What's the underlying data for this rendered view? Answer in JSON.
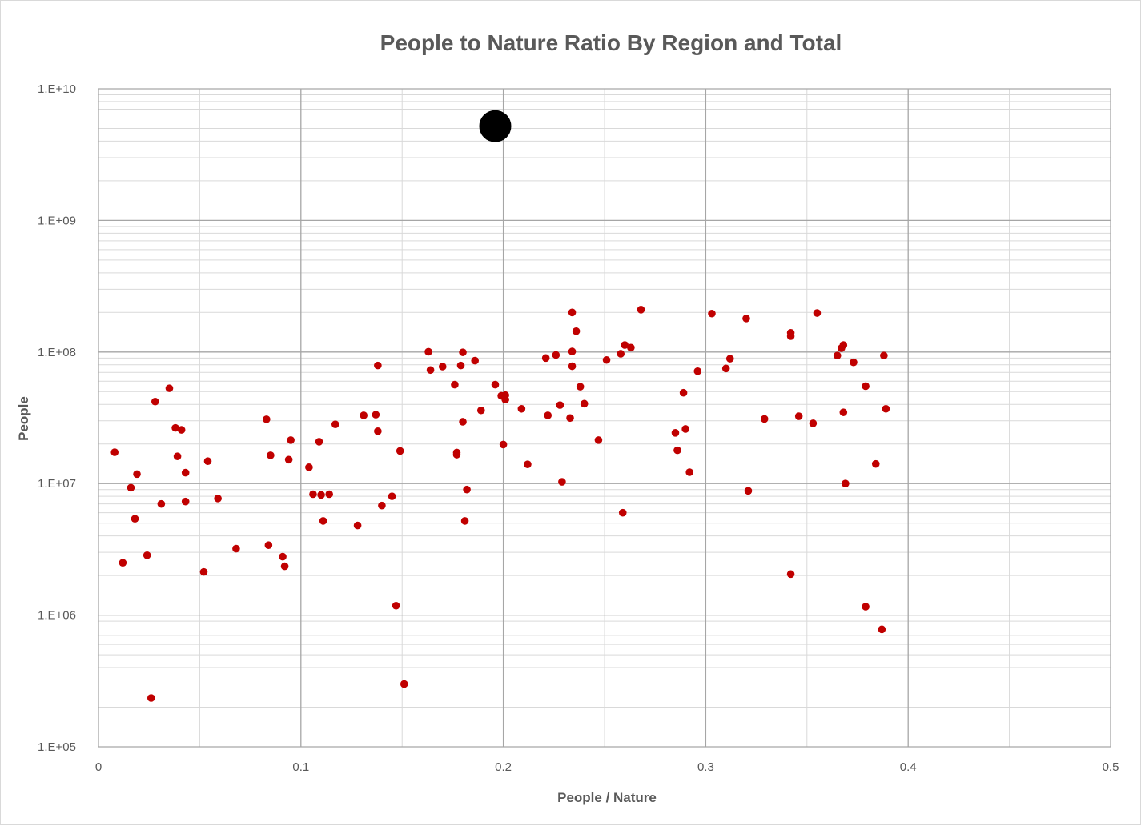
{
  "chart_data": {
    "type": "scatter",
    "title": "People to Nature Ratio By Region and Total",
    "xlabel": "People / Nature",
    "ylabel": "People",
    "xlim": [
      0,
      0.5
    ],
    "ylim": [
      100000,
      10000000000
    ],
    "yscale": "log",
    "grid": true,
    "legend": "none",
    "x_ticks": [
      0,
      0.05,
      0.1,
      0.15,
      0.2,
      0.25,
      0.3,
      0.35,
      0.4,
      0.45,
      0.5
    ],
    "x_tick_labels": [
      "0",
      "",
      "0.1",
      "",
      "0.2",
      "",
      "0.3",
      "",
      "0.4",
      "",
      "0.5"
    ],
    "y_tick_values": [
      100000,
      1000000,
      10000000,
      100000000,
      1000000000,
      10000000000
    ],
    "y_tick_labels": [
      "1.E+05",
      "1.E+06",
      "1.E+07",
      "1.E+08",
      "1.E+09",
      "1.E+10"
    ],
    "colors": {
      "regions": "#c00000",
      "total": "#000000",
      "grid": "#d9d9d9",
      "text": "#595959"
    },
    "series": [
      {
        "kind": "regions",
        "points": [
          {
            "x": 0.008,
            "y": 17300000
          },
          {
            "x": 0.012,
            "y": 2500000
          },
          {
            "x": 0.016,
            "y": 9300000
          },
          {
            "x": 0.018,
            "y": 5400000
          },
          {
            "x": 0.019,
            "y": 11800000
          },
          {
            "x": 0.024,
            "y": 2850000
          },
          {
            "x": 0.026,
            "y": 235000
          },
          {
            "x": 0.028,
            "y": 42000000
          },
          {
            "x": 0.031,
            "y": 7000000
          },
          {
            "x": 0.035,
            "y": 53000000
          },
          {
            "x": 0.038,
            "y": 26500000
          },
          {
            "x": 0.039,
            "y": 16100000
          },
          {
            "x": 0.041,
            "y": 25600000
          },
          {
            "x": 0.043,
            "y": 7300000
          },
          {
            "x": 0.043,
            "y": 12100000
          },
          {
            "x": 0.052,
            "y": 2130000
          },
          {
            "x": 0.054,
            "y": 14800000
          },
          {
            "x": 0.059,
            "y": 7700000
          },
          {
            "x": 0.068,
            "y": 3200000
          },
          {
            "x": 0.083,
            "y": 30800000
          },
          {
            "x": 0.084,
            "y": 3400000
          },
          {
            "x": 0.085,
            "y": 16400000
          },
          {
            "x": 0.091,
            "y": 2780000
          },
          {
            "x": 0.092,
            "y": 2350000
          },
          {
            "x": 0.094,
            "y": 15200000
          },
          {
            "x": 0.095,
            "y": 21400000
          },
          {
            "x": 0.104,
            "y": 13300000
          },
          {
            "x": 0.106,
            "y": 8300000
          },
          {
            "x": 0.109,
            "y": 20800000
          },
          {
            "x": 0.11,
            "y": 8200000
          },
          {
            "x": 0.111,
            "y": 5200000
          },
          {
            "x": 0.114,
            "y": 8300000
          },
          {
            "x": 0.117,
            "y": 28200000
          },
          {
            "x": 0.128,
            "y": 4800000
          },
          {
            "x": 0.131,
            "y": 33000000
          },
          {
            "x": 0.137,
            "y": 33400000
          },
          {
            "x": 0.138,
            "y": 25000000
          },
          {
            "x": 0.138,
            "y": 79000000
          },
          {
            "x": 0.14,
            "y": 6800000
          },
          {
            "x": 0.145,
            "y": 8000000
          },
          {
            "x": 0.147,
            "y": 1180000
          },
          {
            "x": 0.149,
            "y": 17700000
          },
          {
            "x": 0.151,
            "y": 300000
          },
          {
            "x": 0.163,
            "y": 100500000
          },
          {
            "x": 0.164,
            "y": 73000000
          },
          {
            "x": 0.17,
            "y": 77500000
          },
          {
            "x": 0.176,
            "y": 56500000
          },
          {
            "x": 0.177,
            "y": 17200000
          },
          {
            "x": 0.177,
            "y": 16600000
          },
          {
            "x": 0.179,
            "y": 79000000
          },
          {
            "x": 0.18,
            "y": 99500000
          },
          {
            "x": 0.18,
            "y": 29500000
          },
          {
            "x": 0.181,
            "y": 5200000
          },
          {
            "x": 0.182,
            "y": 9000000
          },
          {
            "x": 0.186,
            "y": 86000000
          },
          {
            "x": 0.189,
            "y": 36000000
          },
          {
            "x": 0.196,
            "y": 56500000
          },
          {
            "x": 0.199,
            "y": 46500000
          },
          {
            "x": 0.2,
            "y": 19800000
          },
          {
            "x": 0.201,
            "y": 47000000
          },
          {
            "x": 0.201,
            "y": 43500000
          },
          {
            "x": 0.209,
            "y": 37000000
          },
          {
            "x": 0.212,
            "y": 14000000
          },
          {
            "x": 0.221,
            "y": 90000000
          },
          {
            "x": 0.222,
            "y": 33000000
          },
          {
            "x": 0.226,
            "y": 95000000
          },
          {
            "x": 0.228,
            "y": 39500000
          },
          {
            "x": 0.229,
            "y": 10300000
          },
          {
            "x": 0.233,
            "y": 31500000
          },
          {
            "x": 0.234,
            "y": 200000000
          },
          {
            "x": 0.234,
            "y": 101000000
          },
          {
            "x": 0.234,
            "y": 78000000
          },
          {
            "x": 0.236,
            "y": 144000000
          },
          {
            "x": 0.238,
            "y": 54500000
          },
          {
            "x": 0.24,
            "y": 40500000
          },
          {
            "x": 0.247,
            "y": 21400000
          },
          {
            "x": 0.251,
            "y": 87000000
          },
          {
            "x": 0.258,
            "y": 97000000
          },
          {
            "x": 0.259,
            "y": 6000000
          },
          {
            "x": 0.26,
            "y": 113000000
          },
          {
            "x": 0.263,
            "y": 108000000
          },
          {
            "x": 0.268,
            "y": 210000000
          },
          {
            "x": 0.285,
            "y": 24300000
          },
          {
            "x": 0.286,
            "y": 17900000
          },
          {
            "x": 0.289,
            "y": 49000000
          },
          {
            "x": 0.29,
            "y": 26000000
          },
          {
            "x": 0.292,
            "y": 12200000
          },
          {
            "x": 0.296,
            "y": 71500000
          },
          {
            "x": 0.303,
            "y": 196000000
          },
          {
            "x": 0.31,
            "y": 75000000
          },
          {
            "x": 0.312,
            "y": 89000000
          },
          {
            "x": 0.32,
            "y": 180000000
          },
          {
            "x": 0.321,
            "y": 8800000
          },
          {
            "x": 0.329,
            "y": 31000000
          },
          {
            "x": 0.342,
            "y": 132000000
          },
          {
            "x": 0.342,
            "y": 140000000
          },
          {
            "x": 0.342,
            "y": 2050000
          },
          {
            "x": 0.346,
            "y": 32500000
          },
          {
            "x": 0.353,
            "y": 28700000
          },
          {
            "x": 0.355,
            "y": 198000000
          },
          {
            "x": 0.365,
            "y": 94000000
          },
          {
            "x": 0.367,
            "y": 107000000
          },
          {
            "x": 0.368,
            "y": 113000000
          },
          {
            "x": 0.368,
            "y": 34800000
          },
          {
            "x": 0.369,
            "y": 10000000
          },
          {
            "x": 0.373,
            "y": 83500000
          },
          {
            "x": 0.379,
            "y": 1160000
          },
          {
            "x": 0.379,
            "y": 55000000
          },
          {
            "x": 0.384,
            "y": 14100000
          },
          {
            "x": 0.387,
            "y": 780000
          },
          {
            "x": 0.388,
            "y": 94000000
          },
          {
            "x": 0.389,
            "y": 37000000
          }
        ]
      },
      {
        "kind": "total",
        "points": [
          {
            "x": 0.196,
            "y": 5200000000
          }
        ]
      }
    ]
  }
}
